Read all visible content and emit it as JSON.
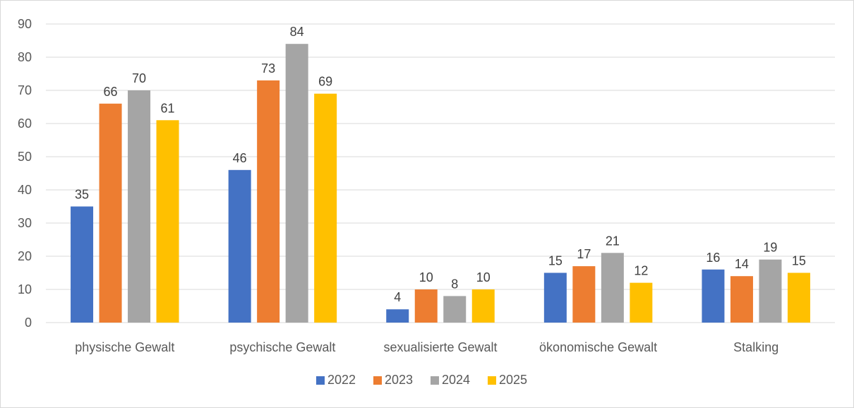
{
  "chart_data": {
    "type": "bar",
    "title": "",
    "xlabel": "",
    "ylabel": "",
    "ylim": [
      0,
      90
    ],
    "y_ticks": [
      0,
      10,
      20,
      30,
      40,
      50,
      60,
      70,
      80,
      90
    ],
    "grid": true,
    "legend_position": "bottom",
    "categories": [
      "physische Gewalt",
      "psychische Gewalt",
      "sexualisierte Gewalt",
      "ökonomische Gewalt",
      "Stalking"
    ],
    "series": [
      {
        "name": "2022",
        "color": "#4472C4",
        "values": [
          35,
          46,
          4,
          15,
          16
        ]
      },
      {
        "name": "2023",
        "color": "#ED7D31",
        "values": [
          66,
          73,
          10,
          17,
          14
        ]
      },
      {
        "name": "2024",
        "color": "#A5A5A5",
        "values": [
          70,
          84,
          8,
          21,
          19
        ]
      },
      {
        "name": "2025",
        "color": "#FFC000",
        "values": [
          61,
          69,
          10,
          12,
          15
        ]
      }
    ]
  }
}
